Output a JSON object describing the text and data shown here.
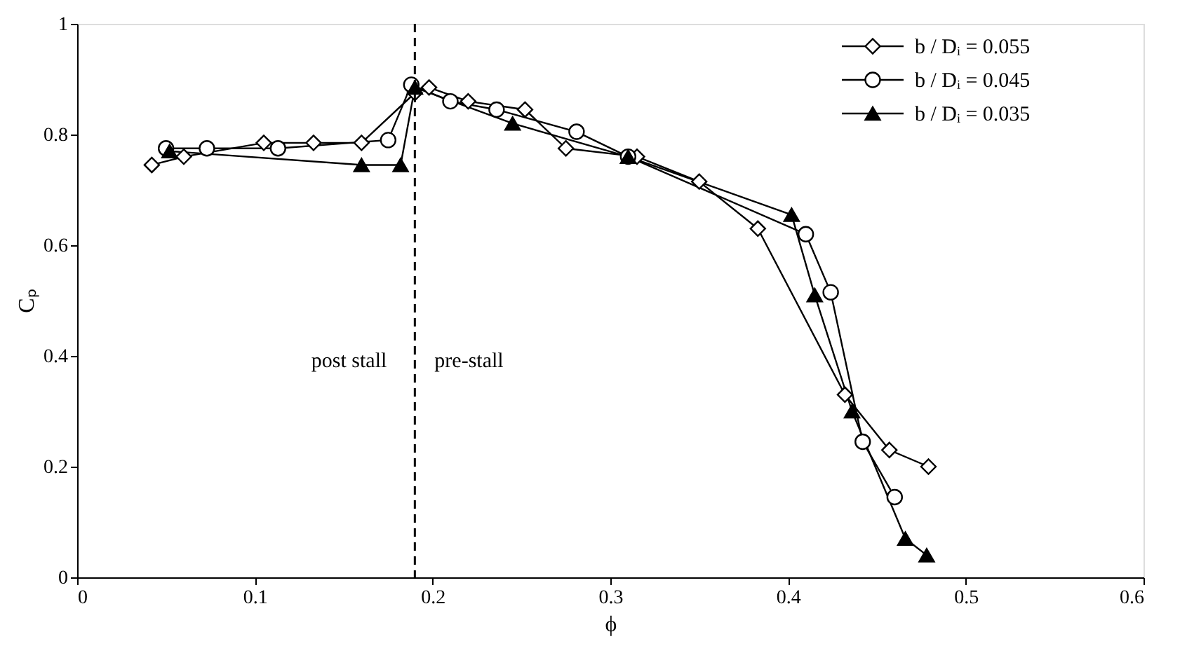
{
  "chart_data": {
    "type": "line",
    "xlabel": "ϕ",
    "ylabel": "Cₚ",
    "xlim": [
      0,
      0.6
    ],
    "xticks": [
      0,
      0.1,
      0.2,
      0.3,
      0.4,
      0.5,
      0.6
    ],
    "ylim": [
      0,
      1
    ],
    "yticks": [
      0,
      0.2,
      0.4,
      0.6,
      0.8,
      1
    ],
    "grid": false,
    "legend": "top right",
    "line_style": "solid",
    "series": [
      {
        "name": "b / Dᵢ = 0.055",
        "color": "#000000",
        "marker": "diamond",
        "x": [
          0.042,
          0.06,
          0.105,
          0.133,
          0.16,
          0.19,
          0.198,
          0.22,
          0.252,
          0.275,
          0.315,
          0.35,
          0.383,
          0.432,
          0.457,
          0.479
        ],
        "values": [
          0.745,
          0.76,
          0.785,
          0.785,
          0.785,
          0.875,
          0.885,
          0.86,
          0.845,
          0.775,
          0.76,
          0.715,
          0.63,
          0.33,
          0.23,
          0.2
        ]
      },
      {
        "name": "b / Dᵢ = 0.045",
        "color": "#000000",
        "marker": "circle",
        "x": [
          0.05,
          0.073,
          0.113,
          0.175,
          0.188,
          0.21,
          0.236,
          0.281,
          0.31,
          0.41,
          0.424,
          0.442,
          0.46
        ],
        "values": [
          0.775,
          0.775,
          0.775,
          0.79,
          0.89,
          0.86,
          0.845,
          0.805,
          0.76,
          0.62,
          0.515,
          0.245,
          0.145
        ]
      },
      {
        "name": "b / Dᵢ = 0.035",
        "color": "#000000",
        "marker": "triangle",
        "x": [
          0.052,
          0.16,
          0.182,
          0.19,
          0.245,
          0.31,
          0.402,
          0.415,
          0.436,
          0.466,
          0.478
        ],
        "values": [
          0.77,
          0.745,
          0.745,
          0.885,
          0.82,
          0.76,
          0.655,
          0.51,
          0.3,
          0.07,
          0.04
        ]
      }
    ],
    "ref_lines": [
      {
        "axis": "x",
        "value": 0.19,
        "line_style": "dashed",
        "color": "#000000"
      }
    ],
    "annotations": [
      "post stall",
      "pre-stall"
    ]
  }
}
